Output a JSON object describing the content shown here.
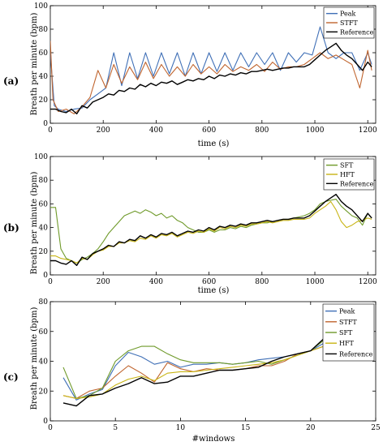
{
  "figure": {
    "panels": [
      {
        "label": "(a)",
        "xlabel": "time (s)",
        "ylabel": "Breath per minute (bpm)"
      },
      {
        "label": "(b)",
        "xlabel": "time (s)",
        "ylabel": "Breath per minute (bpm)"
      },
      {
        "label": "(c)",
        "xlabel": "#windows",
        "ylabel": "Breath per minute (bpm)"
      }
    ]
  },
  "chart_data": [
    {
      "type": "line",
      "title": "",
      "xlabel": "time (s)",
      "ylabel": "Breath per minute (bpm)",
      "xlim": [
        0,
        1230
      ],
      "ylim": [
        0,
        100
      ],
      "xticks": [
        0,
        200,
        400,
        600,
        800,
        1000,
        1200
      ],
      "yticks": [
        0,
        20,
        40,
        60,
        80,
        100
      ],
      "legend_position": "top-right",
      "grid": false,
      "series": [
        {
          "name": "Peak",
          "color": "#3f6fb6",
          "x": [
            0,
            15,
            30,
            60,
            90,
            120,
            150,
            180,
            210,
            240,
            270,
            300,
            330,
            360,
            390,
            420,
            450,
            480,
            510,
            540,
            570,
            600,
            630,
            660,
            690,
            720,
            750,
            780,
            810,
            840,
            870,
            900,
            930,
            960,
            990,
            1020,
            1050,
            1080,
            1110,
            1140,
            1170,
            1200,
            1215
          ],
          "y": [
            60,
            15,
            12,
            10,
            12,
            13,
            20,
            25,
            30,
            60,
            32,
            60,
            38,
            60,
            40,
            60,
            42,
            60,
            40,
            60,
            42,
            60,
            44,
            60,
            45,
            60,
            48,
            60,
            50,
            60,
            45,
            60,
            52,
            60,
            58,
            82,
            60,
            55,
            60,
            60,
            45,
            60,
            50
          ]
        },
        {
          "name": "STFT",
          "color": "#c0652f",
          "x": [
            0,
            10,
            30,
            60,
            90,
            120,
            150,
            180,
            210,
            240,
            270,
            300,
            330,
            360,
            390,
            420,
            450,
            480,
            510,
            540,
            570,
            600,
            630,
            660,
            690,
            720,
            750,
            780,
            810,
            840,
            870,
            900,
            930,
            960,
            990,
            1020,
            1050,
            1080,
            1110,
            1140,
            1170,
            1200,
            1215
          ],
          "y": [
            70,
            20,
            10,
            12,
            8,
            14,
            22,
            45,
            30,
            50,
            34,
            48,
            37,
            52,
            38,
            50,
            40,
            48,
            40,
            50,
            42,
            48,
            42,
            50,
            44,
            48,
            45,
            50,
            44,
            52,
            46,
            48,
            48,
            50,
            55,
            60,
            55,
            58,
            54,
            50,
            30,
            62,
            45
          ]
        },
        {
          "name": "Reference",
          "color": "#000000",
          "x": [
            0,
            20,
            40,
            60,
            80,
            100,
            120,
            140,
            160,
            180,
            200,
            220,
            240,
            260,
            280,
            300,
            320,
            340,
            360,
            380,
            400,
            420,
            440,
            460,
            480,
            500,
            520,
            540,
            560,
            580,
            600,
            620,
            640,
            660,
            680,
            700,
            720,
            740,
            760,
            780,
            800,
            820,
            840,
            860,
            880,
            900,
            920,
            940,
            960,
            980,
            1000,
            1020,
            1040,
            1060,
            1080,
            1100,
            1120,
            1140,
            1160,
            1180,
            1200,
            1215
          ],
          "y": [
            12,
            12,
            10,
            9,
            12,
            8,
            15,
            13,
            18,
            20,
            22,
            25,
            24,
            28,
            27,
            30,
            29,
            33,
            31,
            34,
            32,
            35,
            34,
            36,
            33,
            35,
            37,
            36,
            38,
            37,
            40,
            38,
            41,
            40,
            42,
            41,
            43,
            42,
            44,
            44,
            45,
            46,
            45,
            46,
            47,
            47,
            48,
            48,
            48,
            50,
            54,
            58,
            62,
            65,
            68,
            62,
            58,
            55,
            50,
            45,
            52,
            48
          ]
        }
      ]
    },
    {
      "type": "line",
      "title": "",
      "xlabel": "time (s)",
      "ylabel": "Breath per minute (bpm)",
      "xlim": [
        0,
        1230
      ],
      "ylim": [
        0,
        100
      ],
      "xticks": [
        0,
        200,
        400,
        600,
        800,
        1000,
        1200
      ],
      "yticks": [
        0,
        20,
        40,
        60,
        80,
        100
      ],
      "legend_position": "top-right",
      "grid": false,
      "series": [
        {
          "name": "SFT",
          "color": "#6f9a2a",
          "x": [
            0,
            20,
            40,
            60,
            80,
            100,
            120,
            140,
            160,
            180,
            200,
            220,
            240,
            260,
            280,
            300,
            320,
            340,
            360,
            380,
            400,
            420,
            440,
            460,
            480,
            500,
            520,
            540,
            560,
            580,
            600,
            620,
            640,
            660,
            680,
            700,
            720,
            740,
            760,
            780,
            800,
            820,
            840,
            860,
            880,
            900,
            920,
            940,
            960,
            980,
            1000,
            1020,
            1040,
            1060,
            1080,
            1100,
            1120,
            1140,
            1160,
            1180,
            1200,
            1215
          ],
          "y": [
            57,
            57,
            22,
            14,
            12,
            10,
            13,
            15,
            18,
            22,
            28,
            35,
            40,
            45,
            50,
            52,
            54,
            52,
            55,
            53,
            50,
            52,
            48,
            50,
            46,
            44,
            40,
            38,
            36,
            36,
            38,
            36,
            38,
            38,
            40,
            39,
            41,
            40,
            42,
            43,
            44,
            44,
            45,
            46,
            47,
            47,
            48,
            49,
            50,
            52,
            55,
            60,
            62,
            63,
            64,
            58,
            54,
            50,
            48,
            42,
            52,
            48
          ]
        },
        {
          "name": "HFT",
          "color": "#c8b414",
          "x": [
            0,
            20,
            40,
            60,
            80,
            100,
            120,
            140,
            160,
            180,
            200,
            220,
            240,
            260,
            280,
            300,
            320,
            340,
            360,
            380,
            400,
            420,
            440,
            460,
            480,
            500,
            520,
            540,
            560,
            580,
            600,
            620,
            640,
            660,
            680,
            700,
            720,
            740,
            760,
            780,
            800,
            820,
            840,
            860,
            880,
            900,
            920,
            940,
            960,
            980,
            1000,
            1020,
            1040,
            1060,
            1080,
            1100,
            1120,
            1140,
            1160,
            1180,
            1200,
            1215
          ],
          "y": [
            16,
            16,
            14,
            13,
            12,
            10,
            14,
            13,
            17,
            20,
            21,
            24,
            24,
            27,
            27,
            29,
            28,
            31,
            30,
            33,
            31,
            34,
            33,
            35,
            32,
            34,
            36,
            35,
            37,
            36,
            39,
            37,
            40,
            39,
            41,
            40,
            42,
            41,
            43,
            43,
            44,
            45,
            44,
            45,
            46,
            46,
            47,
            47,
            47,
            48,
            52,
            55,
            58,
            62,
            55,
            45,
            40,
            42,
            45,
            46,
            48,
            47
          ]
        },
        {
          "name": "Reference",
          "color": "#000000",
          "x": [
            0,
            20,
            40,
            60,
            80,
            100,
            120,
            140,
            160,
            180,
            200,
            220,
            240,
            260,
            280,
            300,
            320,
            340,
            360,
            380,
            400,
            420,
            440,
            460,
            480,
            500,
            520,
            540,
            560,
            580,
            600,
            620,
            640,
            660,
            680,
            700,
            720,
            740,
            760,
            780,
            800,
            820,
            840,
            860,
            880,
            900,
            920,
            940,
            960,
            980,
            1000,
            1020,
            1040,
            1060,
            1080,
            1100,
            1120,
            1140,
            1160,
            1180,
            1200,
            1215
          ],
          "y": [
            12,
            12,
            10,
            9,
            12,
            8,
            15,
            13,
            18,
            20,
            22,
            25,
            24,
            28,
            27,
            30,
            29,
            33,
            31,
            34,
            32,
            35,
            34,
            36,
            33,
            35,
            37,
            36,
            38,
            37,
            40,
            38,
            41,
            40,
            42,
            41,
            43,
            42,
            44,
            44,
            45,
            46,
            45,
            46,
            47,
            47,
            48,
            48,
            48,
            50,
            54,
            58,
            62,
            65,
            68,
            62,
            58,
            55,
            50,
            45,
            52,
            48
          ]
        }
      ]
    },
    {
      "type": "line",
      "title": "",
      "xlabel": "#windows",
      "ylabel": "Breath per minute (bpm)",
      "xlim": [
        0,
        25
      ],
      "ylim": [
        0,
        80
      ],
      "xticks": [
        0,
        5,
        10,
        15,
        20,
        25
      ],
      "yticks": [
        0,
        20,
        40,
        60,
        80
      ],
      "legend_position": "top-right",
      "grid": false,
      "x": [
        1,
        2,
        3,
        4,
        5,
        6,
        7,
        8,
        9,
        10,
        11,
        12,
        13,
        14,
        15,
        16,
        17,
        18,
        19,
        20,
        21,
        22,
        23,
        24
      ],
      "series": [
        {
          "name": "Peak",
          "color": "#3f6fb6",
          "values": [
            29,
            14,
            18,
            21,
            37,
            46,
            43,
            38,
            40,
            36,
            38,
            38,
            39,
            38,
            39,
            41,
            42,
            43,
            45,
            47,
            52,
            50,
            52,
            48
          ]
        },
        {
          "name": "STFT",
          "color": "#c0652f",
          "values": [
            17,
            15,
            20,
            22,
            30,
            37,
            32,
            26,
            39,
            35,
            33,
            35,
            34,
            34,
            35,
            37,
            37,
            40,
            45,
            47,
            50,
            56,
            56,
            44
          ]
        },
        {
          "name": "SFT",
          "color": "#6f9a2a",
          "values": [
            36,
            15,
            17,
            22,
            40,
            47,
            50,
            50,
            45,
            41,
            39,
            39,
            39,
            38,
            39,
            40,
            38,
            41,
            44,
            47,
            54,
            53,
            53,
            47
          ]
        },
        {
          "name": "HFT",
          "color": "#c8b414",
          "values": [
            17,
            15,
            16,
            18,
            24,
            28,
            30,
            27,
            32,
            33,
            33,
            34,
            35,
            36,
            37,
            38,
            39,
            41,
            44,
            47,
            50,
            47,
            44,
            48
          ]
        },
        {
          "name": "Reference",
          "color": "#000000",
          "values": [
            12,
            10,
            17,
            18,
            22,
            25,
            29,
            25,
            26,
            30,
            30,
            32,
            34,
            34,
            35,
            36,
            40,
            43,
            45,
            47,
            55,
            62,
            58,
            50
          ]
        }
      ]
    }
  ]
}
